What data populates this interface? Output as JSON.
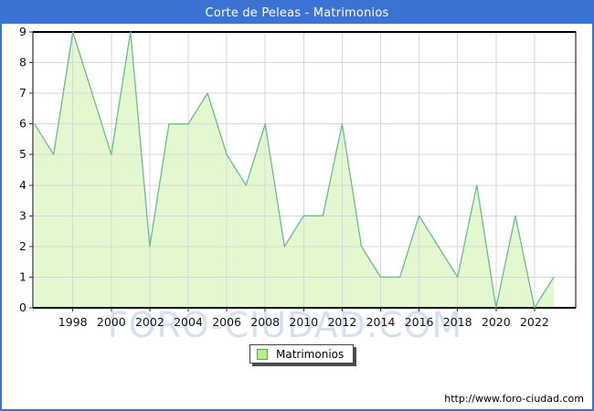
{
  "titlebar": {
    "title": "Corte de Peleas - Matrimonios"
  },
  "chart_data": {
    "type": "area",
    "title": "Corte de Peleas - Matrimonios",
    "series": [
      {
        "name": "Matrimonios",
        "x": [
          1996,
          1997,
          1998,
          1999,
          2000,
          2001,
          2002,
          2003,
          2004,
          2005,
          2006,
          2007,
          2008,
          2009,
          2010,
          2011,
          2012,
          2013,
          2014,
          2015,
          2016,
          2017,
          2018,
          2019,
          2020,
          2021,
          2022,
          2023
        ],
        "values": [
          6,
          5,
          9,
          7,
          5,
          9,
          2,
          6,
          6,
          7,
          5,
          4,
          6,
          2,
          3,
          3,
          6,
          2,
          1,
          1,
          3,
          2,
          1,
          4,
          0,
          3,
          0,
          1
        ]
      }
    ],
    "xlabel": "",
    "ylabel": "",
    "ylim": [
      0,
      9
    ],
    "yticks": [
      0,
      1,
      2,
      3,
      4,
      5,
      6,
      7,
      8,
      9
    ],
    "xticks": [
      1998,
      2000,
      2002,
      2004,
      2006,
      2008,
      2010,
      2012,
      2014,
      2016,
      2018,
      2020,
      2022
    ],
    "grid": true,
    "legend_position": "bottom-center",
    "colors": {
      "frame_blue": "#3a73d4",
      "area_fill": "#e3f8cf",
      "line": "#68bd8c",
      "grid": "#d7d7df",
      "plot_border": "#000000",
      "tick_text": "#111111",
      "watermark": "#d6e0f3",
      "legend_swatch": "#bcec8a",
      "legend_swatch_border": "#4cae4c"
    }
  },
  "legend": {
    "label": "Matrimonios"
  },
  "watermark": {
    "text": "FORO-CIUDAD.COM"
  },
  "footer": {
    "url": "http://www.foro-ciudad.com"
  }
}
